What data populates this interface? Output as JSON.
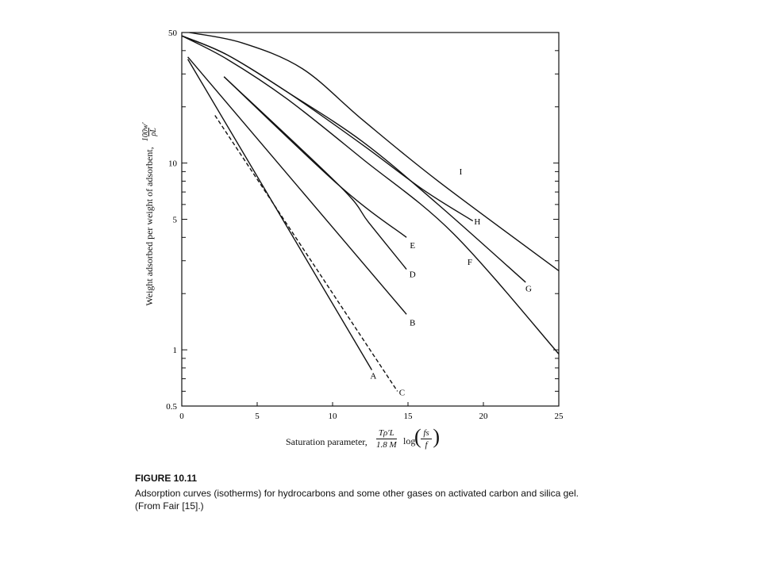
{
  "chart_data": {
    "type": "line",
    "xlabel": "Saturation parameter,",
    "xlabel_formula": {
      "numerator": "Tρ′L",
      "denominator": "1.8 M",
      "func": "log",
      "ratio_num": "fs",
      "ratio_den": "f"
    },
    "ylabel": "Weight adsorbed per weight of adsorbent,",
    "ylabel_formula": {
      "numerator": "100w′",
      "denominator": "ρL"
    },
    "y_scale": "log",
    "xlim": [
      0,
      25
    ],
    "ylim": [
      0.5,
      50
    ],
    "x_ticks": [
      "0",
      "5",
      "10",
      "15",
      "20",
      "25"
    ],
    "y_ticks": [
      {
        "value": 50,
        "label": "50"
      },
      {
        "value": 10,
        "label": "10"
      },
      {
        "value": 5,
        "label": "5"
      },
      {
        "value": 1,
        "label": "1"
      },
      {
        "value": 0.5,
        "label": "0.5"
      }
    ],
    "series": [
      {
        "name": "A",
        "dashed": false,
        "x": [
          0.4,
          12.6
        ],
        "y": [
          36,
          0.78
        ]
      },
      {
        "name": "C",
        "dashed": true,
        "x": [
          2.2,
          14.3
        ],
        "y": [
          18,
          0.6
        ]
      },
      {
        "name": "B",
        "dashed": false,
        "x": [
          0.4,
          14.9
        ],
        "y": [
          37,
          1.55
        ]
      },
      {
        "name": "D",
        "dashed": false,
        "x": [
          2.8,
          10.5,
          12.4,
          14.9
        ],
        "y": [
          29,
          7.5,
          4.8,
          2.7
        ]
      },
      {
        "name": "E",
        "dashed": false,
        "x": [
          2.8,
          10.5,
          14.9
        ],
        "y": [
          29,
          7.5,
          4.0
        ]
      },
      {
        "name": "F",
        "dashed": false,
        "x": [
          0,
          3,
          7,
          12,
          18,
          25
        ],
        "y": [
          48,
          36,
          22,
          10.5,
          4.2,
          0.95
        ]
      },
      {
        "name": "G",
        "dashed": false,
        "x": [
          0,
          3,
          7,
          12,
          17,
          22.8
        ],
        "y": [
          48,
          38,
          24,
          13,
          6,
          2.3
        ]
      },
      {
        "name": "H",
        "dashed": false,
        "x": [
          0,
          3,
          7,
          12,
          16,
          19.3
        ],
        "y": [
          48,
          38,
          24,
          12.5,
          7.2,
          4.9
        ]
      },
      {
        "name": "I",
        "dashed": false,
        "x": [
          0.5,
          4,
          8,
          12,
          17,
          25
        ],
        "y": [
          50,
          44,
          32,
          17,
          8,
          2.65
        ]
      }
    ],
    "curve_labels": [
      {
        "name": "A",
        "x": 12.7,
        "y": 0.7
      },
      {
        "name": "C",
        "x": 14.6,
        "y": 0.57
      },
      {
        "name": "B",
        "x": 15.3,
        "y": 1.35
      },
      {
        "name": "D",
        "x": 15.3,
        "y": 2.45
      },
      {
        "name": "E",
        "x": 15.3,
        "y": 3.5
      },
      {
        "name": "F",
        "x": 19.1,
        "y": 2.85
      },
      {
        "name": "G",
        "x": 23.0,
        "y": 2.05
      },
      {
        "name": "H",
        "x": 19.6,
        "y": 4.7
      },
      {
        "name": "I",
        "x": 18.5,
        "y": 8.7
      }
    ],
    "grid": false
  },
  "caption": {
    "title": "FIGURE 10.11",
    "line1": "Adsorption curves (isotherms) for hydrocarbons and some other gases on activated carbon and silica gel.",
    "line2": "(From Fair [15].)"
  }
}
